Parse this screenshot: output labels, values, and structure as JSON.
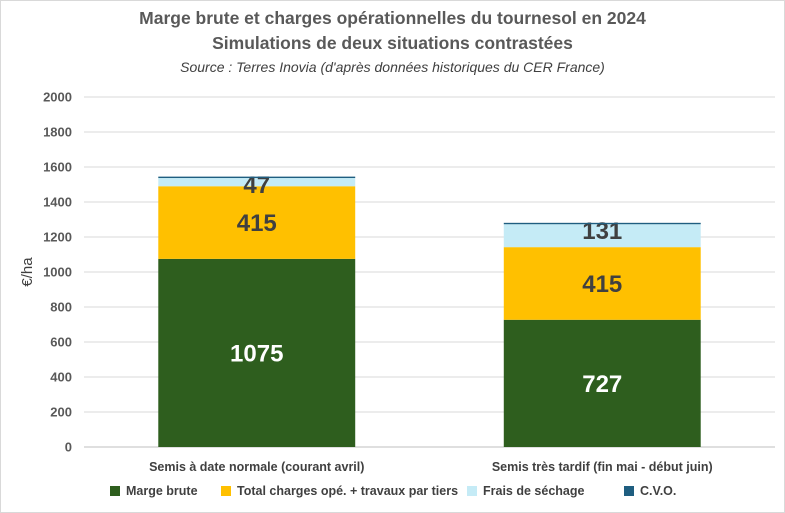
{
  "chart_data": {
    "type": "bar",
    "stacked": true,
    "title": "Marge brute et charges opérationnelles  du tournesol en 2024",
    "subtitle": "Simulations de deux situations contrastées",
    "source": "Source : Terres Inovia (d'après données historiques du CER France)",
    "ylabel": "€/ha",
    "ylim": [
      0,
      2000
    ],
    "yticks": [
      0,
      200,
      400,
      600,
      800,
      1000,
      1200,
      1400,
      1600,
      1800,
      2000
    ],
    "grid": true,
    "legend_position": "bottom",
    "categories": [
      "Semis à date normale (courant avril)",
      "Semis très tardif (fin mai - début juin)"
    ],
    "series": [
      {
        "name": "Marge brute",
        "color": "#2e5e1e",
        "label_color": "#ffffff",
        "values": [
          1075,
          727
        ],
        "labels": [
          "1075",
          "727"
        ]
      },
      {
        "name": "Total charges opé. + travaux par tiers",
        "color": "#ffc000",
        "label_color": "#404040",
        "values": [
          415,
          415
        ],
        "labels": [
          "415",
          "415"
        ]
      },
      {
        "name": "Frais de séchage",
        "color": "#c5ebf6",
        "label_color": "#404040",
        "values": [
          47,
          131
        ],
        "labels": [
          "47",
          "131"
        ]
      },
      {
        "name": "C.V.O.",
        "color": "#1f5e80",
        "label_color": "#404040",
        "values": [
          8,
          8
        ],
        "labels": [
          "",
          ""
        ]
      }
    ]
  }
}
